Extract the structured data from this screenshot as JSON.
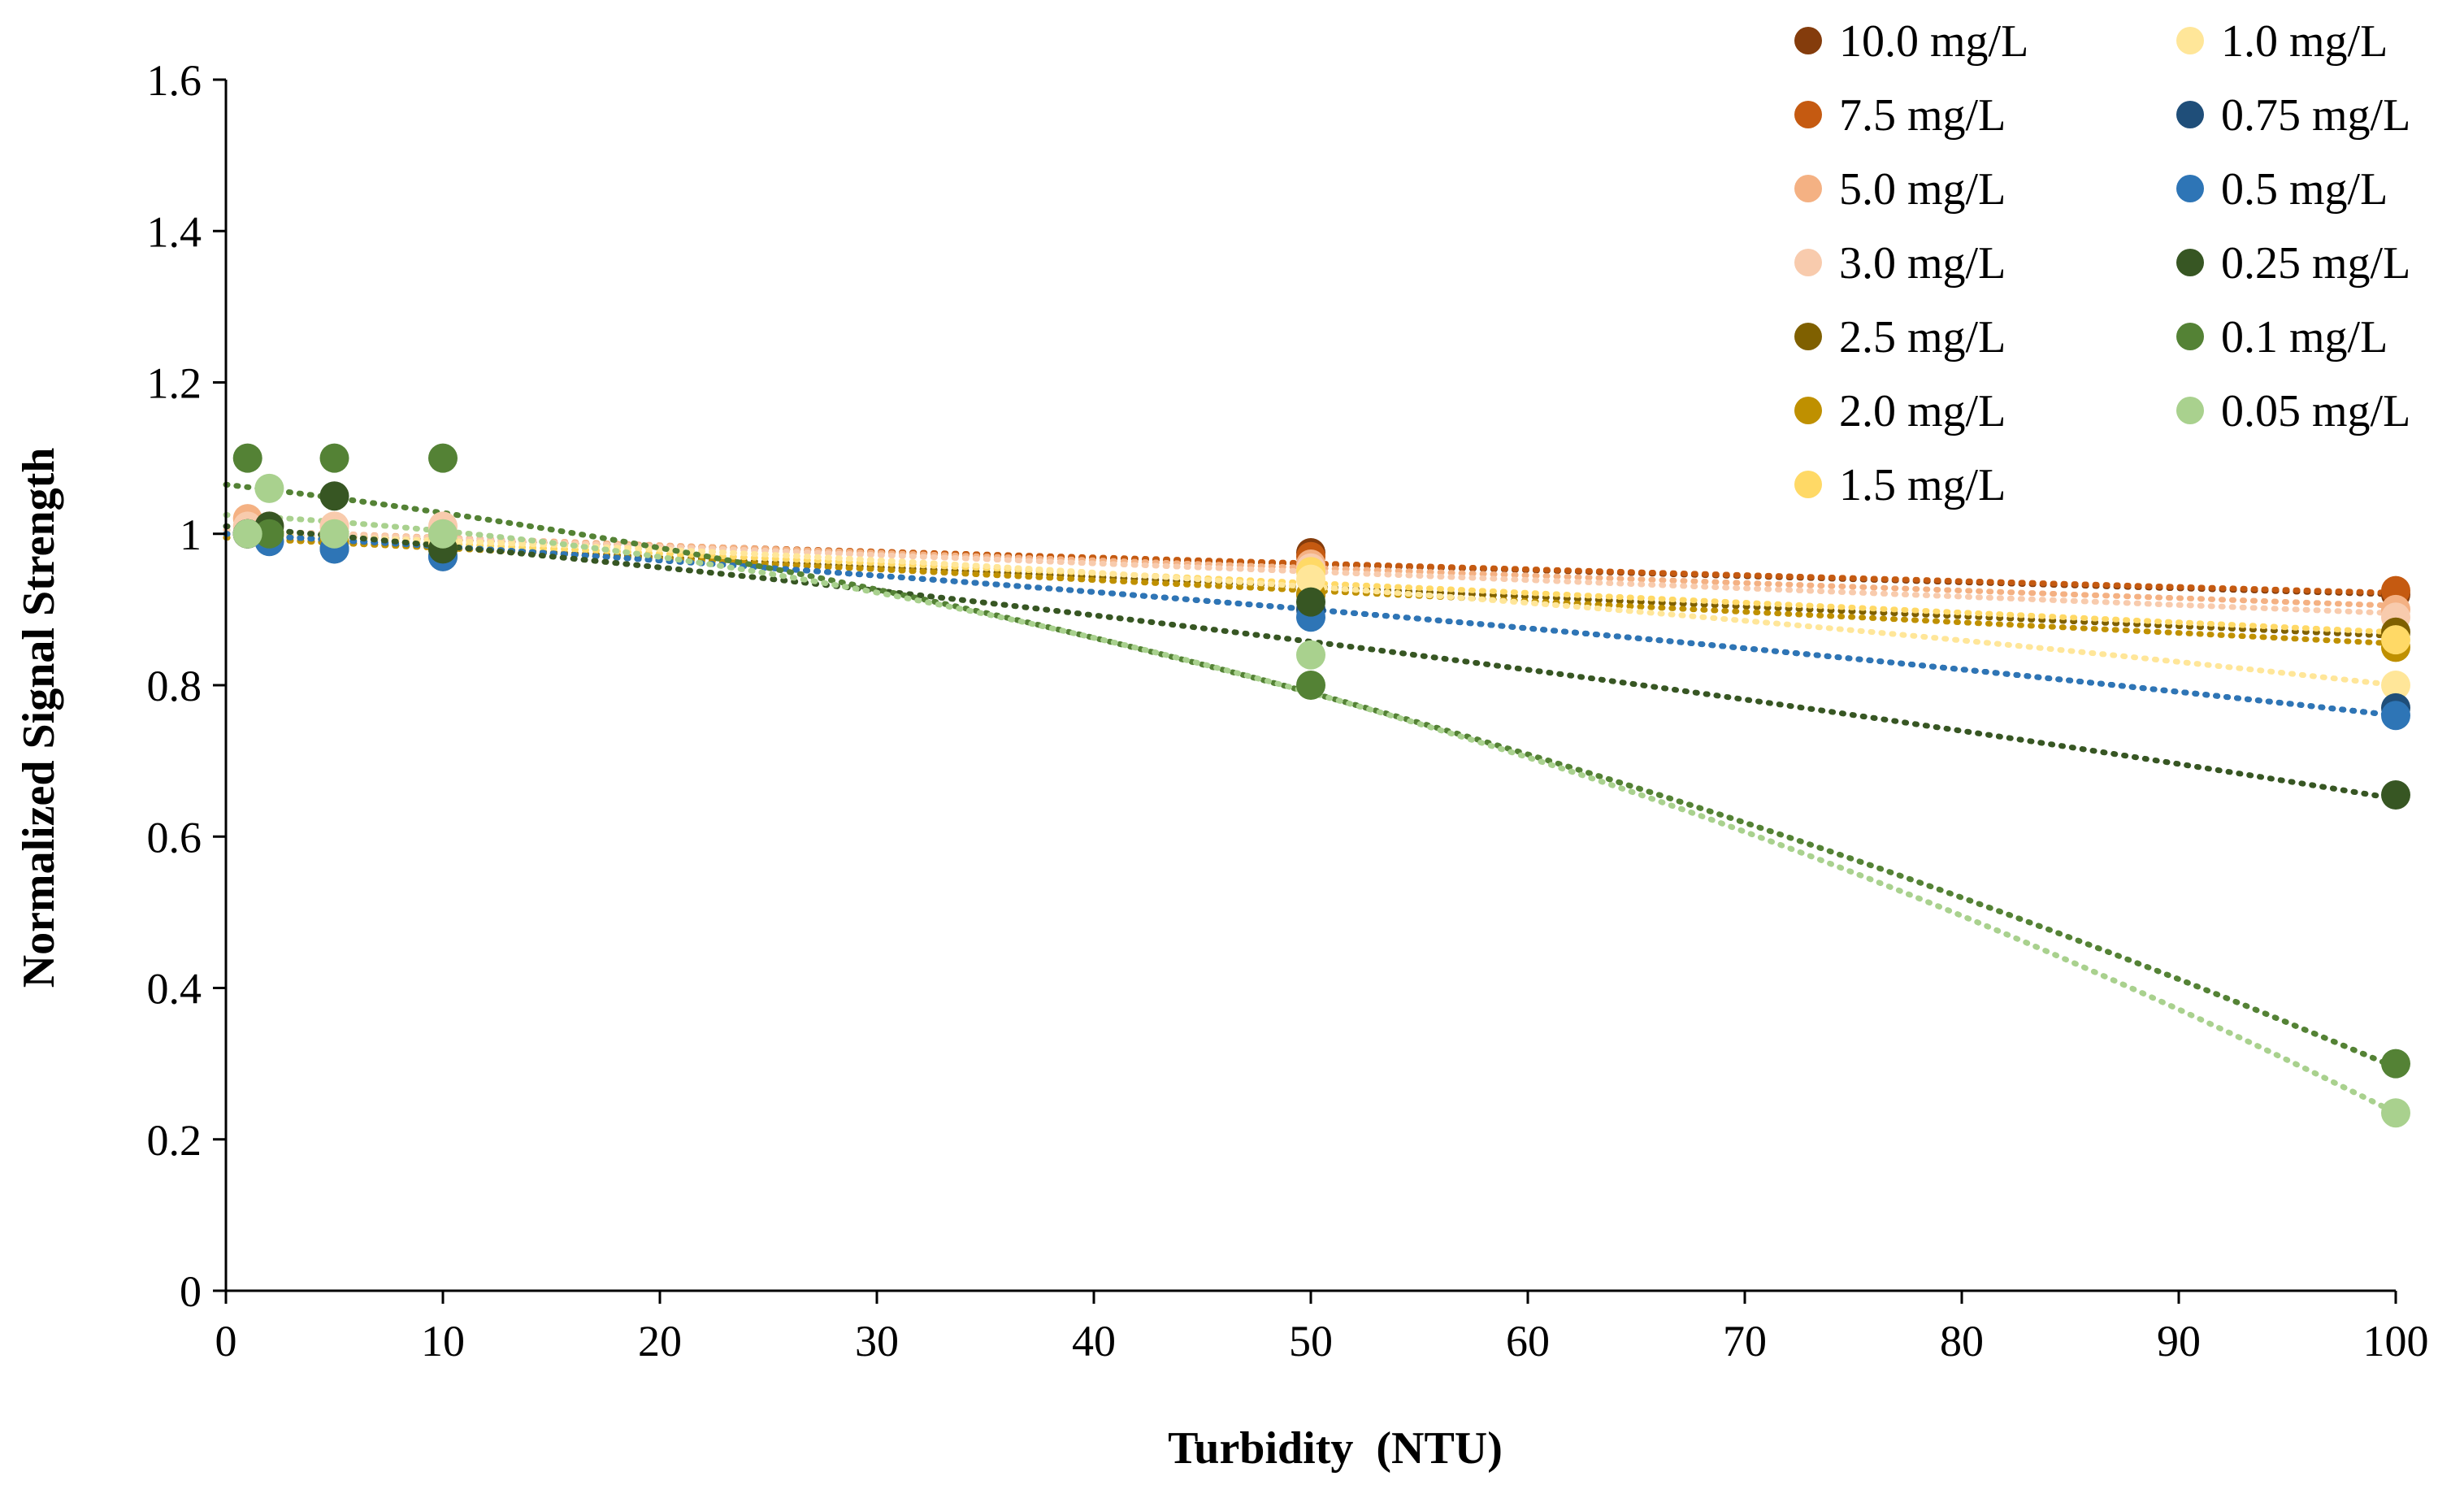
{
  "chart_data": {
    "type": "scatter",
    "title": "",
    "xlabel": "Turbidity  (NTU)",
    "ylabel": "Normalized Signal Strength",
    "xlim": [
      0,
      100
    ],
    "ylim": [
      0,
      1.6
    ],
    "xticks": [
      0,
      10,
      20,
      30,
      40,
      50,
      60,
      70,
      80,
      90,
      100
    ],
    "xtick_labels": [
      "0",
      "10",
      "20",
      "30",
      "40",
      "50",
      "60",
      "70",
      "80",
      "90",
      "100"
    ],
    "yticks": [
      0,
      0.2,
      0.4,
      0.6,
      0.8,
      1.0,
      1.2,
      1.4,
      1.6
    ],
    "ytick_labels": [
      "0",
      "0.2",
      "0.4",
      "0.6",
      "0.8",
      "1",
      "1.2",
      "1.4",
      "1.6"
    ],
    "grid": false,
    "legend_position": "top-right",
    "trendline": "polynomial, dotted",
    "x": [
      1,
      2,
      5,
      10,
      50,
      100
    ],
    "series": [
      {
        "name": "10.0 mg/L",
        "color": "#843C0C",
        "values": [
          1.0,
          1.0,
          1.0,
          0.99,
          0.975,
          0.92
        ],
        "fit": [
          1.0,
          -0.0008
        ]
      },
      {
        "name": "7.5 mg/L",
        "color": "#C55A11",
        "values": [
          1.0,
          1.0,
          1.0,
          0.99,
          0.97,
          0.925
        ],
        "fit": [
          1.0,
          -0.00078
        ]
      },
      {
        "name": "5.0 mg/L",
        "color": "#F4B183",
        "values": [
          1.02,
          1.01,
          1.01,
          1.0,
          0.96,
          0.9
        ],
        "fit": [
          1.005,
          -0.001
        ]
      },
      {
        "name": "3.0 mg/L",
        "color": "#F8CBAD",
        "values": [
          1.01,
          1.01,
          1.01,
          1.01,
          0.955,
          0.89
        ],
        "fit": [
          1.005,
          -0.0011
        ]
      },
      {
        "name": "2.5 mg/L",
        "color": "#7F6000",
        "values": [
          1.0,
          1.0,
          0.99,
          0.98,
          0.92,
          0.87
        ],
        "fit": [
          0.995,
          -0.0013
        ]
      },
      {
        "name": "2.0 mg/L",
        "color": "#BF9000",
        "values": [
          1.0,
          1.0,
          0.99,
          0.98,
          0.92,
          0.85
        ],
        "fit": [
          0.995,
          -0.0014
        ]
      },
      {
        "name": "1.5 mg/L",
        "color": "#FFD966",
        "values": [
          1.0,
          1.0,
          1.0,
          0.99,
          0.95,
          0.86
        ],
        "fit": [
          1.0,
          -0.0013
        ]
      },
      {
        "name": "1.0 mg/L",
        "color": "#FFE699",
        "values": [
          1.0,
          1.0,
          1.0,
          0.99,
          0.94,
          0.8
        ],
        "fit": [
          1.0,
          -0.0008,
          -1.2e-05
        ]
      },
      {
        "name": "0.75 mg/L",
        "color": "#1F4E79",
        "values": [
          1.0,
          0.99,
          0.98,
          0.97,
          0.9,
          0.77
        ],
        "fit": [
          1.0,
          -0.0016,
          -8e-06
        ]
      },
      {
        "name": "0.5 mg/L",
        "color": "#2E75B6",
        "values": [
          1.0,
          0.99,
          0.98,
          0.97,
          0.89,
          0.76
        ],
        "fit": [
          1.0,
          -0.0016,
          -8e-06
        ]
      },
      {
        "name": "0.25 mg/L",
        "color": "#375623",
        "values": [
          1.0,
          1.01,
          1.05,
          0.98,
          0.91,
          0.655
        ],
        "fit": [
          1.01,
          -0.0025,
          -1.1e-05
        ]
      },
      {
        "name": "0.1 mg/L",
        "color": "#548235",
        "values": [
          1.1,
          1.0,
          1.1,
          1.1,
          0.8,
          0.3
        ],
        "fit": [
          1.065,
          -0.0033,
          -4.4e-05
        ]
      },
      {
        "name": "0.05 mg/L",
        "color": "#A9D18E",
        "values": [
          1.0,
          1.06,
          1.0,
          1.0,
          0.84,
          0.235
        ],
        "fit": [
          1.025,
          -0.0015,
          -6.4e-05
        ]
      }
    ]
  }
}
